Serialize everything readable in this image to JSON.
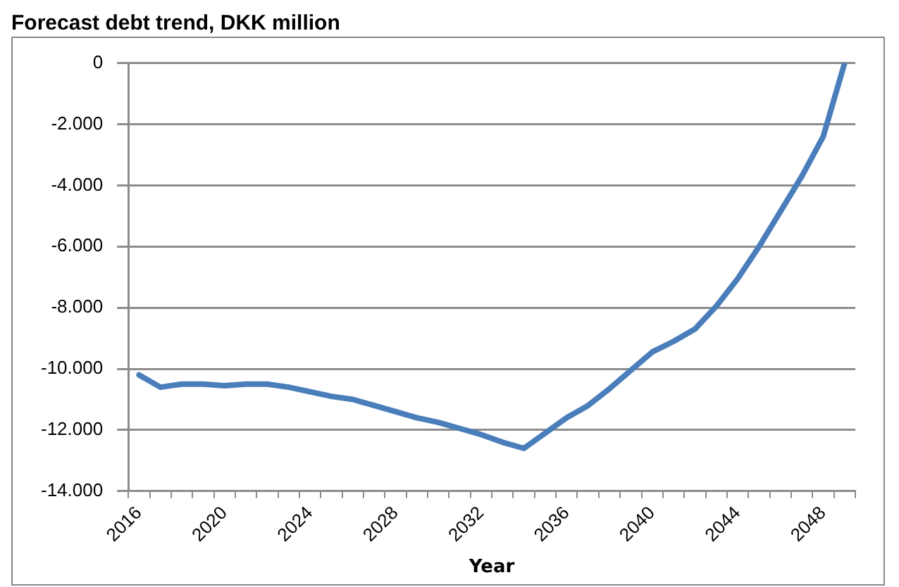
{
  "chart_data": {
    "type": "line",
    "title": "Forecast debt trend, DKK million",
    "xlabel": "Year",
    "categories": [
      "2016",
      null,
      null,
      null,
      "2020",
      null,
      null,
      null,
      "2024",
      null,
      null,
      null,
      "2028",
      null,
      null,
      null,
      "2032",
      null,
      null,
      null,
      "2036",
      null,
      null,
      null,
      "2040",
      null,
      null,
      null,
      "2044",
      null,
      null,
      null,
      "2048",
      null
    ],
    "series": [
      {
        "color": "#4a7ebb",
        "values": [
          -10200,
          -10600,
          -10500,
          -10500,
          -10550,
          -10500,
          -10500,
          -10600,
          -10750,
          -10900,
          -11000,
          -11200,
          -11400,
          -11600,
          -11750,
          -11950,
          -12150,
          -12400,
          -12600,
          -12100,
          -11600,
          -11200,
          -10650,
          -10050,
          -9450,
          -9100,
          -8700,
          -7950,
          -7050,
          -6000,
          -4850,
          -3700,
          -2400,
          0
        ]
      }
    ],
    "ylim": [
      -14000,
      0
    ],
    "yticks": [
      {
        "value": -14000,
        "label": "-14.000"
      },
      {
        "value": -12000,
        "label": "-12.000"
      },
      {
        "value": -10000,
        "label": "-10.000"
      },
      {
        "value": -8000,
        "label": "-8.000"
      },
      {
        "value": -6000,
        "label": "-6.000"
      },
      {
        "value": -4000,
        "label": "-4.000"
      },
      {
        "value": -2000,
        "label": "-2.000"
      },
      0
    ],
    "grid": "y",
    "legend": false,
    "marker": "none",
    "line_style": "solid"
  }
}
